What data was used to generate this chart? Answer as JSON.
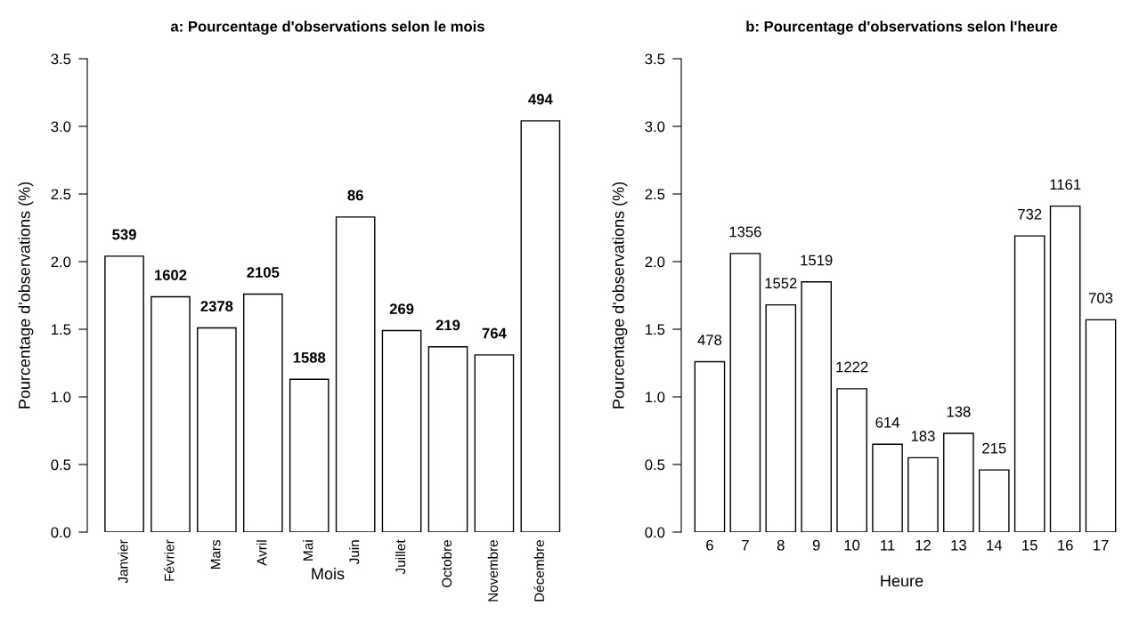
{
  "chart_data": [
    {
      "type": "bar",
      "title": "a: Pourcentage d'observations selon le mois",
      "xlabel": "Mois",
      "ylabel": "Pourcentage d'observations (%)",
      "categories": [
        "Janvier",
        "Février",
        "Mars",
        "Avril",
        "Mai",
        "Juin",
        "Juillet",
        "Octobre",
        "Novembre",
        "Décembre"
      ],
      "values": [
        2.04,
        1.74,
        1.51,
        1.76,
        1.13,
        2.33,
        1.49,
        1.37,
        1.31,
        3.04
      ],
      "annotations": [
        {
          "text": "539",
          "x": "Janvier",
          "y": 2.04
        },
        {
          "text": "1602",
          "x": "Février",
          "y": 1.74
        },
        {
          "text": "2378",
          "x": "Mars",
          "y": 1.51
        },
        {
          "text": "2105",
          "x": "Avril",
          "y": 1.76
        },
        {
          "text": "1588",
          "x": "Mai",
          "y": 1.13
        },
        {
          "text": "86",
          "x": "Juin",
          "y": 2.33
        },
        {
          "text": "269",
          "x": "Juillet",
          "y": 1.49
        },
        {
          "text": "219",
          "x": "Octobre",
          "y": 1.37
        },
        {
          "text": "764",
          "x": "Novembre",
          "y": 1.31
        },
        {
          "text": "494",
          "x": "Décembre",
          "y": 3.04
        }
      ],
      "color": "#ffffff",
      "ylim": [
        0,
        3.5
      ],
      "yticks": [
        {
          "value": 0,
          "label": "0.0"
        },
        0.5,
        {
          "value": 1,
          "label": "1.0"
        },
        1.5,
        {
          "value": 2,
          "label": "2.0"
        },
        2.5,
        {
          "value": 3,
          "label": "3.0"
        },
        3.5
      ],
      "grid": false,
      "legend": false
    },
    {
      "type": "bar",
      "title": "b: Pourcentage d'observations selon l'heure",
      "xlabel": "Heure",
      "ylabel": "Pourcentage d'observations (%)",
      "categories": [
        "6",
        "7",
        "8",
        "9",
        "10",
        "11",
        "12",
        "13",
        "14",
        "15",
        "16",
        "17"
      ],
      "values": [
        1.26,
        2.06,
        1.68,
        1.85,
        1.06,
        0.65,
        0.55,
        0.73,
        0.46,
        2.19,
        2.41,
        1.57
      ],
      "annotations": [
        {
          "text": "478",
          "x": "6",
          "y": 1.26
        },
        {
          "text": "1356",
          "x": "7",
          "y": 2.06
        },
        {
          "text": "1552",
          "x": "8",
          "y": 1.68
        },
        {
          "text": "1519",
          "x": "9",
          "y": 1.85
        },
        {
          "text": "1222",
          "x": "10",
          "y": 1.06
        },
        {
          "text": "614",
          "x": "11",
          "y": 0.65
        },
        {
          "text": "183",
          "x": "12",
          "y": 0.55
        },
        {
          "text": "138",
          "x": "13",
          "y": 0.73
        },
        {
          "text": "215",
          "x": "14",
          "y": 0.46
        },
        {
          "text": "732",
          "x": "15",
          "y": 2.19
        },
        {
          "text": "1161",
          "x": "16",
          "y": 2.41
        },
        {
          "text": "703",
          "x": "17",
          "y": 1.57
        }
      ],
      "color": "#ffffff",
      "ylim": [
        0,
        3.5
      ],
      "yticks": [
        {
          "value": 0,
          "label": "0.0"
        },
        0.5,
        {
          "value": 1,
          "label": "1.0"
        },
        1.5,
        {
          "value": 2,
          "label": "2.0"
        },
        2.5,
        {
          "value": 3,
          "label": "3.0"
        },
        3.5
      ],
      "grid": false,
      "legend": false
    }
  ]
}
